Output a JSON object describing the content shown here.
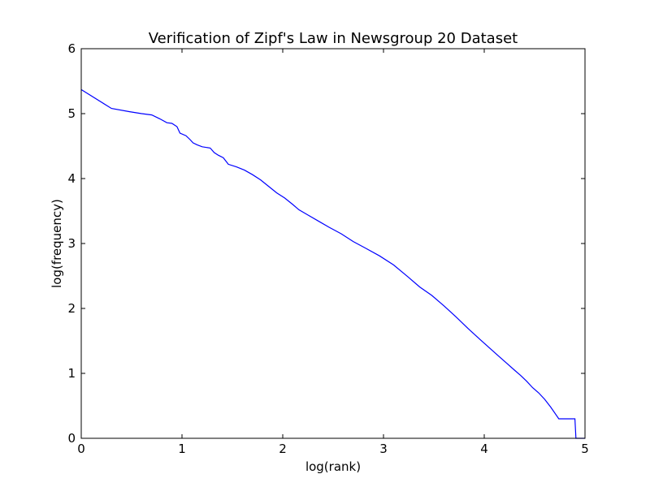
{
  "chart_data": {
    "type": "line",
    "title": "Verification of Zipf's Law in Newsgroup 20 Dataset",
    "xlabel": "log(rank)",
    "ylabel": "log(frequency)",
    "xlim": [
      0,
      5
    ],
    "ylim": [
      0,
      6
    ],
    "xticks": [
      "0",
      "1",
      "2",
      "3",
      "4",
      "5"
    ],
    "yticks": [
      "0",
      "1",
      "2",
      "3",
      "4",
      "5",
      "6"
    ],
    "grid": false,
    "legend": "none",
    "series": [
      {
        "color": "#0000ff",
        "points": [
          [
            0.0,
            5.37
          ],
          [
            0.3,
            5.08
          ],
          [
            0.48,
            5.03
          ],
          [
            0.6,
            5.0
          ],
          [
            0.7,
            4.98
          ],
          [
            0.78,
            4.92
          ],
          [
            0.85,
            4.86
          ],
          [
            0.9,
            4.85
          ],
          [
            0.95,
            4.8
          ],
          [
            0.98,
            4.7
          ],
          [
            1.04,
            4.66
          ],
          [
            1.08,
            4.6
          ],
          [
            1.11,
            4.55
          ],
          [
            1.15,
            4.52
          ],
          [
            1.2,
            4.49
          ],
          [
            1.28,
            4.47
          ],
          [
            1.32,
            4.4
          ],
          [
            1.36,
            4.36
          ],
          [
            1.41,
            4.32
          ],
          [
            1.46,
            4.22
          ],
          [
            1.54,
            4.18
          ],
          [
            1.62,
            4.13
          ],
          [
            1.7,
            4.06
          ],
          [
            1.78,
            3.98
          ],
          [
            1.86,
            3.88
          ],
          [
            1.94,
            3.78
          ],
          [
            2.02,
            3.7
          ],
          [
            2.1,
            3.6
          ],
          [
            2.16,
            3.52
          ],
          [
            2.26,
            3.43
          ],
          [
            2.36,
            3.34
          ],
          [
            2.46,
            3.25
          ],
          [
            2.58,
            3.15
          ],
          [
            2.7,
            3.03
          ],
          [
            2.82,
            2.93
          ],
          [
            2.96,
            2.81
          ],
          [
            3.1,
            2.67
          ],
          [
            3.24,
            2.49
          ],
          [
            3.36,
            2.33
          ],
          [
            3.48,
            2.2
          ],
          [
            3.6,
            2.04
          ],
          [
            3.72,
            1.87
          ],
          [
            3.84,
            1.69
          ],
          [
            3.96,
            1.52
          ],
          [
            4.06,
            1.38
          ],
          [
            4.14,
            1.27
          ],
          [
            4.22,
            1.16
          ],
          [
            4.3,
            1.05
          ],
          [
            4.36,
            0.97
          ],
          [
            4.42,
            0.88
          ],
          [
            4.48,
            0.78
          ],
          [
            4.54,
            0.7
          ],
          [
            4.6,
            0.6
          ],
          [
            4.66,
            0.48
          ],
          [
            4.74,
            0.3
          ],
          [
            4.9,
            0.3
          ],
          [
            4.91,
            0.0
          ],
          [
            5.0,
            0.0
          ]
        ]
      }
    ]
  }
}
